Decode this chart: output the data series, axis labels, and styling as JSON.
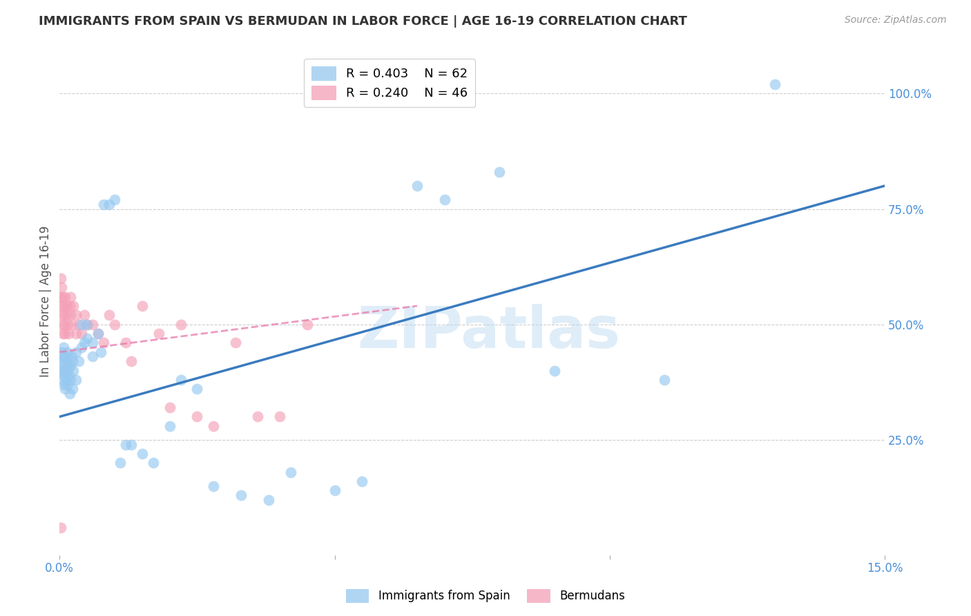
{
  "title": "IMMIGRANTS FROM SPAIN VS BERMUDAN IN LABOR FORCE | AGE 16-19 CORRELATION CHART",
  "source": "Source: ZipAtlas.com",
  "ylabel": "In Labor Force | Age 16-19",
  "ytick_labels": [
    "100.0%",
    "75.0%",
    "50.0%",
    "25.0%"
  ],
  "ytick_values": [
    1.0,
    0.75,
    0.5,
    0.25
  ],
  "xlim": [
    0.0,
    0.15
  ],
  "ylim": [
    0.0,
    1.1
  ],
  "legend_blue_r": "R = 0.403",
  "legend_blue_n": "N = 62",
  "legend_pink_r": "R = 0.240",
  "legend_pink_n": "N = 46",
  "blue_color": "#96c8f0",
  "pink_color": "#f4a0b8",
  "blue_line_color": "#3a7bbf",
  "pink_line_color": "#e87aaa",
  "watermark": "ZIPatlas",
  "blue_scatter_x": [
    0.0002,
    0.0003,
    0.0004,
    0.0005,
    0.0005,
    0.0006,
    0.0007,
    0.0007,
    0.0008,
    0.0009,
    0.001,
    0.001,
    0.0012,
    0.0012,
    0.0013,
    0.0014,
    0.0015,
    0.0015,
    0.0016,
    0.0017,
    0.0018,
    0.002,
    0.002,
    0.0022,
    0.0023,
    0.0024,
    0.0025,
    0.003,
    0.003,
    0.0035,
    0.004,
    0.004,
    0.0045,
    0.005,
    0.005,
    0.006,
    0.006,
    0.007,
    0.0075,
    0.008,
    0.009,
    0.01,
    0.011,
    0.012,
    0.013,
    0.015,
    0.017,
    0.02,
    0.022,
    0.025,
    0.028,
    0.033,
    0.038,
    0.042,
    0.05,
    0.055,
    0.065,
    0.07,
    0.08,
    0.09,
    0.11,
    0.13
  ],
  "blue_scatter_y": [
    0.42,
    0.44,
    0.4,
    0.38,
    0.43,
    0.41,
    0.39,
    0.45,
    0.37,
    0.43,
    0.4,
    0.36,
    0.42,
    0.38,
    0.44,
    0.4,
    0.37,
    0.43,
    0.41,
    0.39,
    0.35,
    0.41,
    0.38,
    0.43,
    0.42,
    0.36,
    0.4,
    0.44,
    0.38,
    0.42,
    0.45,
    0.5,
    0.46,
    0.5,
    0.47,
    0.46,
    0.43,
    0.48,
    0.44,
    0.76,
    0.76,
    0.77,
    0.2,
    0.24,
    0.24,
    0.22,
    0.2,
    0.28,
    0.38,
    0.36,
    0.15,
    0.13,
    0.12,
    0.18,
    0.14,
    0.16,
    0.8,
    0.77,
    0.83,
    0.4,
    0.38,
    1.02
  ],
  "pink_scatter_x": [
    0.0001,
    0.0002,
    0.0003,
    0.0003,
    0.0004,
    0.0005,
    0.0005,
    0.0006,
    0.0007,
    0.0008,
    0.0009,
    0.001,
    0.001,
    0.0012,
    0.0013,
    0.0015,
    0.0016,
    0.0018,
    0.002,
    0.002,
    0.0022,
    0.0025,
    0.003,
    0.003,
    0.0035,
    0.004,
    0.0045,
    0.005,
    0.006,
    0.007,
    0.008,
    0.009,
    0.01,
    0.012,
    0.013,
    0.015,
    0.018,
    0.02,
    0.022,
    0.025,
    0.028,
    0.032,
    0.036,
    0.04,
    0.045,
    0.0002
  ],
  "pink_scatter_y": [
    0.56,
    0.6,
    0.54,
    0.58,
    0.52,
    0.5,
    0.56,
    0.48,
    0.54,
    0.52,
    0.5,
    0.48,
    0.56,
    0.54,
    0.52,
    0.5,
    0.48,
    0.54,
    0.52,
    0.56,
    0.5,
    0.54,
    0.48,
    0.52,
    0.5,
    0.48,
    0.52,
    0.5,
    0.5,
    0.48,
    0.46,
    0.52,
    0.5,
    0.46,
    0.42,
    0.54,
    0.48,
    0.32,
    0.5,
    0.3,
    0.28,
    0.46,
    0.3,
    0.3,
    0.5,
    0.06
  ],
  "blue_line_x": [
    0.0,
    0.15
  ],
  "blue_line_y": [
    0.3,
    0.8
  ],
  "pink_line_x": [
    0.0,
    0.065
  ],
  "pink_line_y": [
    0.44,
    0.54
  ]
}
